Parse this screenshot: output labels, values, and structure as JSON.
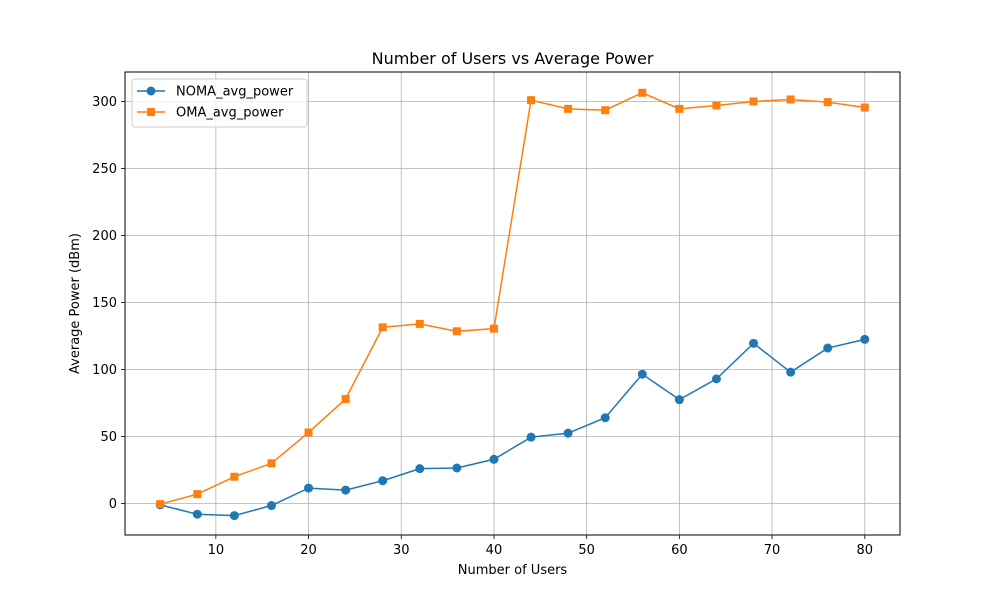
{
  "chart_data": {
    "type": "line",
    "title": "Number of Users vs Average Power",
    "xlabel": "Number of Users",
    "ylabel": "Average Power (dBm)",
    "x": [
      4,
      8,
      12,
      16,
      20,
      24,
      28,
      32,
      36,
      40,
      44,
      48,
      52,
      56,
      60,
      64,
      68,
      72,
      76,
      80
    ],
    "xlim": [
      0.2,
      83.8
    ],
    "ylim": [
      -23.5,
      322
    ],
    "xticks": [
      10,
      20,
      30,
      40,
      50,
      60,
      70,
      80
    ],
    "yticks": [
      0,
      50,
      100,
      150,
      200,
      250,
      300
    ],
    "grid": true,
    "legend_position": "top-left",
    "series": [
      {
        "name": "NOMA_avg_power",
        "color": "#1f77b4",
        "marker": "circle",
        "values": [
          -1,
          -8,
          -9,
          -1.5,
          11.5,
          10,
          17,
          26,
          26.5,
          33,
          49.5,
          52.5,
          64,
          96.5,
          77.5,
          93,
          119.5,
          98,
          116,
          122.5
        ]
      },
      {
        "name": "OMA_avg_power",
        "color": "#ff7f0e",
        "marker": "square",
        "values": [
          -0.5,
          7,
          20,
          30,
          53,
          78,
          131.5,
          134,
          128.5,
          130.5,
          301,
          294.5,
          293.5,
          306.5,
          294.5,
          297,
          300,
          301.5,
          299.5,
          295.5
        ]
      }
    ]
  }
}
